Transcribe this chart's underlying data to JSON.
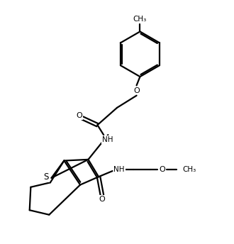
{
  "background_color": "#ffffff",
  "line_color": "#000000",
  "line_width": 1.6,
  "dbo": 0.065,
  "figsize": [
    3.3,
    3.44
  ],
  "dpi": 100,
  "xlim": [
    0,
    10
  ],
  "ylim": [
    0,
    10.4
  ]
}
